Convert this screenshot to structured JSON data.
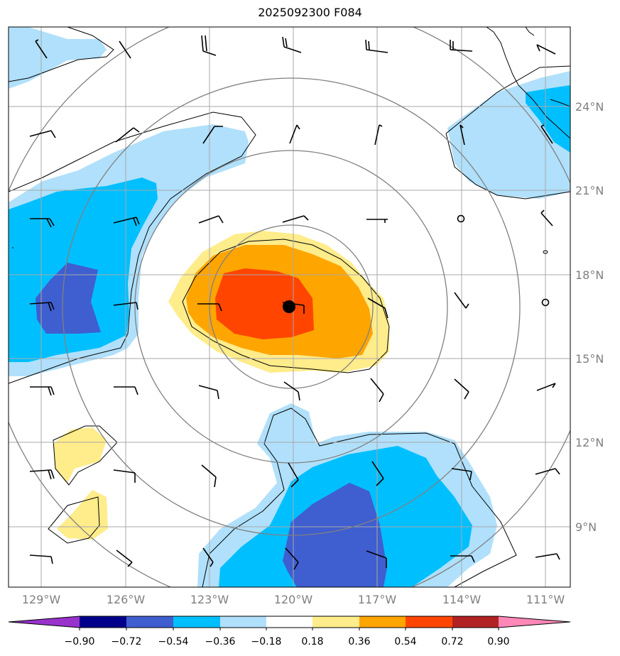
{
  "title": "2025092300 F084",
  "longitude_labels": [
    "129°W",
    "126°W",
    "123°W",
    "120°W",
    "117°W",
    "114°W",
    "111°W"
  ],
  "latitude_labels": [
    "24°N",
    "21°N",
    "18°N",
    "15°N",
    "12°N",
    "9°N"
  ],
  "colorbar": {
    "tick_labels": [
      "−0.90",
      "−0.72",
      "−0.54",
      "−0.36",
      "−0.18",
      "0.18",
      "0.36",
      "0.54",
      "0.72",
      "0.90"
    ],
    "colors": [
      "#9932cc",
      "#00008b",
      "#3f5ecf",
      "#00bfff",
      "#b0e0fb",
      "#ffffff",
      "#ffec8b",
      "#ffa500",
      "#ff4500",
      "#b22222",
      "#ff88b8"
    ]
  },
  "fill_colors": {
    "dark_blue": "#3f5ecf",
    "blue": "#00bfff",
    "light_blue": "#b0e0fb",
    "yellow": "#ffec8b",
    "orange": "#ffa500",
    "red": "#ff4500"
  },
  "storm_center": {
    "lon": -120.0,
    "lat": 16.9
  },
  "grid_color": "#a9a9a9",
  "ring_color": "#808080"
}
